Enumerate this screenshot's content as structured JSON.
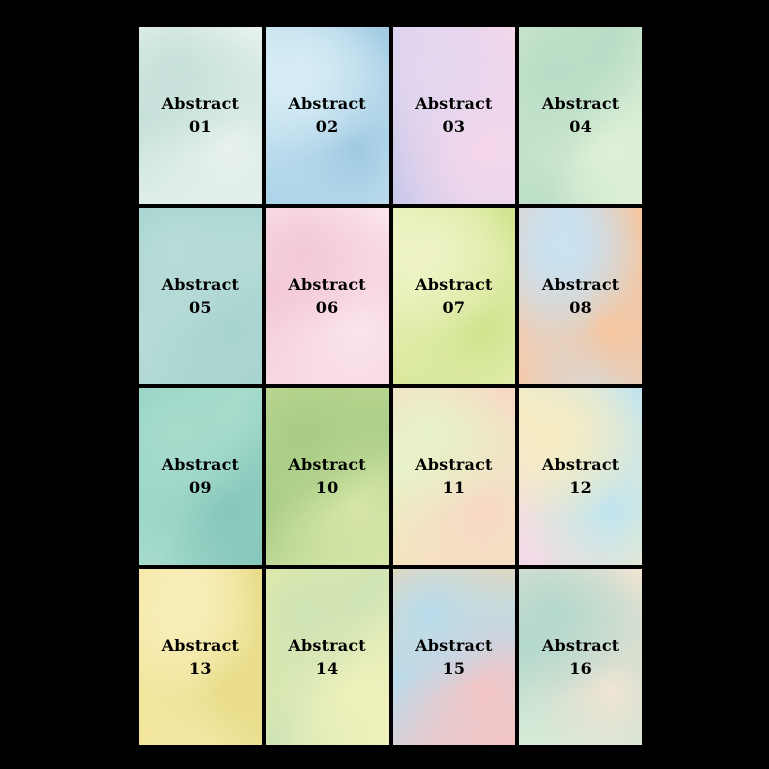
{
  "tiles": [
    {
      "title": "Abstract",
      "number": "01",
      "colors": [
        "#dfeee9",
        "#c6e0da",
        "#e8f2ee"
      ]
    },
    {
      "title": "Abstract",
      "number": "02",
      "colors": [
        "#a9d2e8",
        "#d6ecf5",
        "#9fc9e2"
      ]
    },
    {
      "title": "Abstract",
      "number": "03",
      "colors": [
        "#c9c8ea",
        "#e4d6ef",
        "#f4d6ea"
      ]
    },
    {
      "title": "Abstract",
      "number": "04",
      "colors": [
        "#cfe8cf",
        "#b8dcc5",
        "#e0f0d8"
      ]
    },
    {
      "title": "Abstract",
      "number": "05",
      "colors": [
        "#9fd0cd",
        "#b8dcd8",
        "#a8d4cf"
      ]
    },
    {
      "title": "Abstract",
      "number": "06",
      "colors": [
        "#f7d8e2",
        "#f3c9d8",
        "#fbe6ec"
      ]
    },
    {
      "title": "Abstract",
      "number": "07",
      "colors": [
        "#d8e89a",
        "#eef3c4",
        "#cfe38c"
      ]
    },
    {
      "title": "Abstract",
      "number": "08",
      "colors": [
        "#f7c9a8",
        "#c9e2f2",
        "#f6c59e"
      ]
    },
    {
      "title": "Abstract",
      "number": "09",
      "colors": [
        "#8fd0c2",
        "#a8dccd",
        "#86c8bb"
      ]
    },
    {
      "title": "Abstract",
      "number": "10",
      "colors": [
        "#c4dc96",
        "#a8cc84",
        "#d6e6a8"
      ]
    },
    {
      "title": "Abstract",
      "number": "11",
      "colors": [
        "#f6e2c0",
        "#e8f2c8",
        "#f8d6c4"
      ]
    },
    {
      "title": "Abstract",
      "number": "12",
      "colors": [
        "#f2d8ec",
        "#f6ecc4",
        "#bfe4f0"
      ]
    },
    {
      "title": "Abstract",
      "number": "13",
      "colors": [
        "#f2e49a",
        "#f8eeb8",
        "#e8dc88"
      ]
    },
    {
      "title": "Abstract",
      "number": "14",
      "colors": [
        "#e4eca4",
        "#d0e4b4",
        "#f0f2bc"
      ]
    },
    {
      "title": "Abstract",
      "number": "15",
      "colors": [
        "#f6d4a8",
        "#b8dcec",
        "#f4c4c4"
      ]
    },
    {
      "title": "Abstract",
      "number": "16",
      "colors": [
        "#d8ecd8",
        "#b4d8cc",
        "#f0e4d4"
      ]
    }
  ]
}
